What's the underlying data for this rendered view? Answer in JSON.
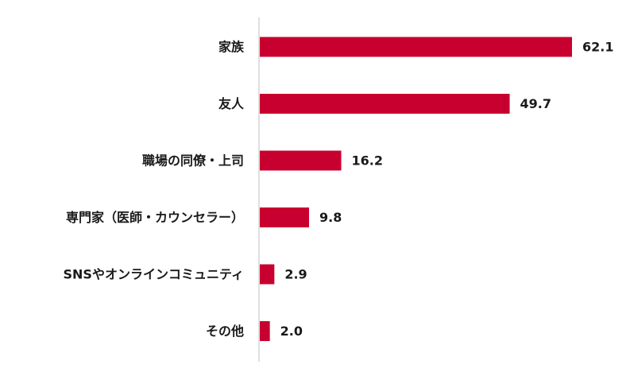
{
  "chart_data": {
    "type": "bar",
    "orientation": "horizontal",
    "categories": [
      "家族",
      "友人",
      "職場の同僚・上司",
      "専門家（医師・カウンセラー）",
      "SNSやオンラインコミュニティ",
      "その他"
    ],
    "values": [
      62.1,
      49.7,
      16.2,
      9.8,
      2.9,
      2.0
    ],
    "value_labels": [
      "62.1",
      "49.7",
      "16.2",
      "9.8",
      "2.9",
      "2.0"
    ],
    "title": "",
    "xlabel": "",
    "ylabel": "",
    "xlim": [
      0,
      70
    ],
    "grid": false,
    "legend": "none",
    "bar_color": "#c8002f",
    "axis_color": "#bfbfbf"
  }
}
